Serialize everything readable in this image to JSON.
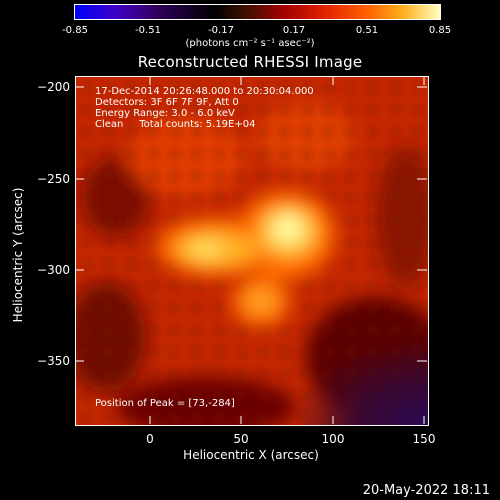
{
  "colorbar": {
    "ticks": [
      "-0.85",
      "-0.51",
      "-0.17",
      "0.17",
      "0.51",
      "0.85"
    ],
    "units_label": "(photons cm⁻² s⁻¹ asec⁻²)"
  },
  "title": "Reconstructed RHESSI Image",
  "info": {
    "time": "17-Dec-2014 20:26:48.000 to 20:30:04.000",
    "detectors": "Detectors: 3F 6F 7F 9F, Att 0",
    "energy": "Energy Range: 3.0 - 6.0 keV",
    "clean": "Clean     Total counts: 5.19E+04",
    "peak": "Position of Peak = [73,-284]"
  },
  "axes": {
    "xlabel": "Heliocentric X (arcsec)",
    "ylabel": "Heliocentric Y (arcsec)",
    "xticks": [
      "0",
      "50",
      "100",
      "150"
    ],
    "yticks": [
      "−200",
      "−250",
      "−300",
      "−350"
    ]
  },
  "footer": "20-May-2022 18:11",
  "colors": {
    "background": "#000000",
    "image_base": "#cc2a00"
  }
}
